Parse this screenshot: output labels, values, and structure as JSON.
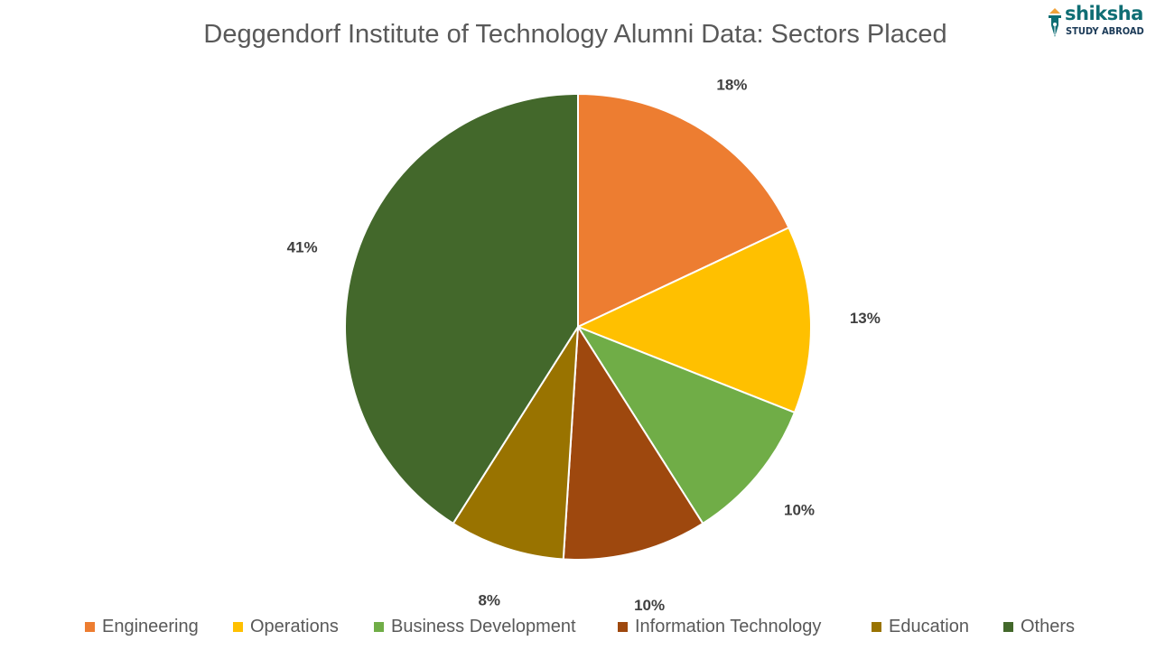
{
  "logo": {
    "name": "shiksha",
    "tagline": "STUDY ABROAD",
    "icon": "pen-nib-icon"
  },
  "chart_data": {
    "type": "pie",
    "title": "Deggendorf Institute of Technology Alumni Data: Sectors Placed",
    "slices": [
      {
        "label": "Engineering",
        "value": 18,
        "display": "18%",
        "color": "#ED7D31"
      },
      {
        "label": "Operations",
        "value": 13,
        "display": "13%",
        "color": "#FFC000"
      },
      {
        "label": "Business Development",
        "value": 10,
        "display": "10%",
        "color": "#70AD47"
      },
      {
        "label": "Information Technology",
        "value": 10,
        "display": "10%",
        "color": "#9E480E"
      },
      {
        "label": "Education",
        "value": 8,
        "display": "8%",
        "color": "#997300"
      },
      {
        "label": "Others",
        "value": 41,
        "display": "41%",
        "color": "#43682B"
      }
    ],
    "legend_position": "bottom",
    "label_color": "#404040"
  }
}
